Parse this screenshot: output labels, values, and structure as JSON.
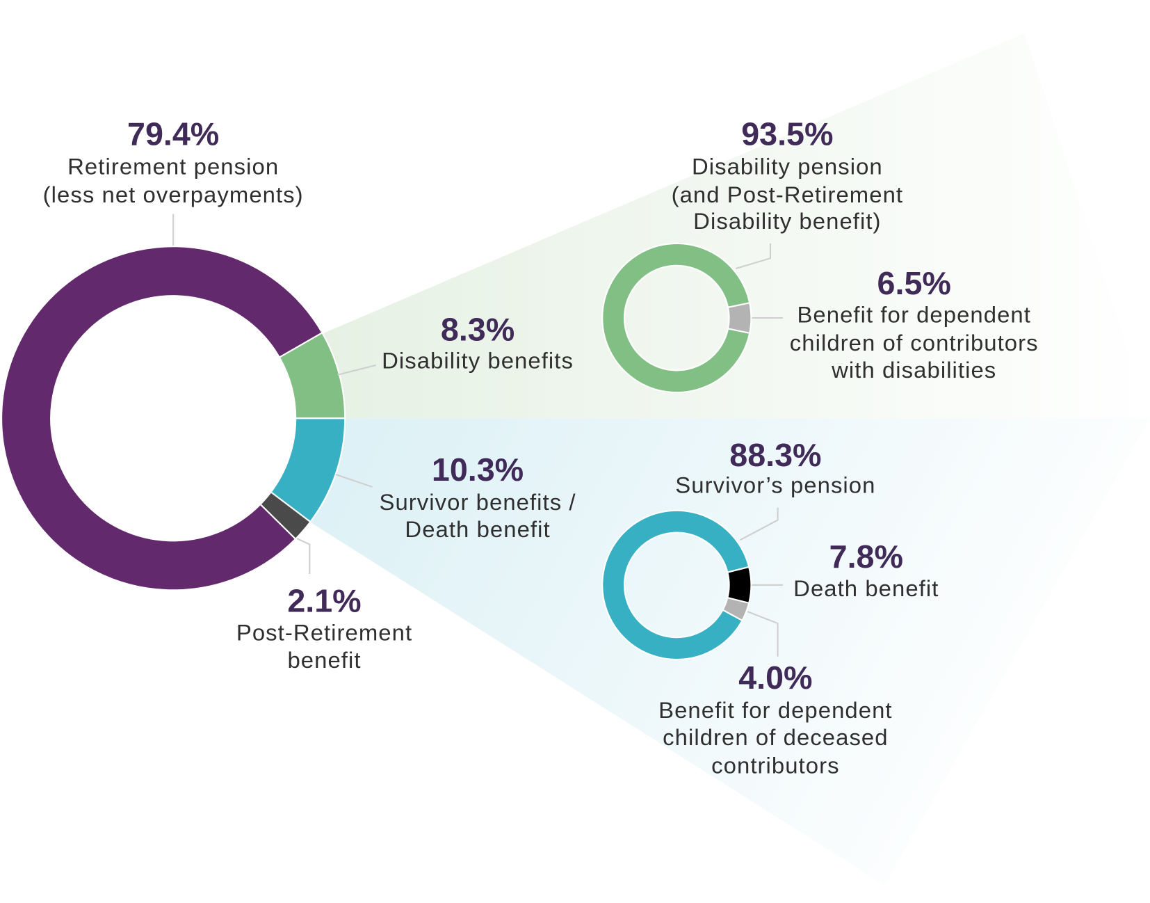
{
  "chart_data": [
    {
      "type": "pie",
      "donut": true,
      "categories": [
        [
          "Retirement pension",
          "(less net overpayments)"
        ],
        [
          "Disability benefits"
        ],
        [
          "Survivor benefits /",
          "Death benefit"
        ],
        [
          "Post-Retirement",
          "benefit"
        ]
      ],
      "values": [
        79.4,
        8.3,
        10.3,
        2.1
      ],
      "value_labels": [
        "79.4%",
        "8.3%",
        "10.3%",
        "2.1%"
      ],
      "colors": [
        "#62296c",
        "#82bf84",
        "#36b0c2",
        "#4a4a4a"
      ]
    },
    {
      "type": "pie",
      "donut": true,
      "categories": [
        [
          "Disability pension",
          "(and Post-Retirement",
          "Disability benefit)"
        ],
        [
          "Benefit for dependent",
          "children of contributors",
          "with disabilities"
        ]
      ],
      "values": [
        93.5,
        6.5
      ],
      "value_labels": [
        "93.5%",
        "6.5%"
      ],
      "colors": [
        "#82bf84",
        "#b3b3b3"
      ]
    },
    {
      "type": "pie",
      "donut": true,
      "categories": [
        [
          "Survivor’s pension"
        ],
        [
          "Death benefit"
        ],
        [
          "Benefit for dependent",
          "children of deceased",
          "contributors"
        ]
      ],
      "values": [
        88.3,
        7.8,
        4.0
      ],
      "value_labels": [
        "88.3%",
        "7.8%",
        "4.0%"
      ],
      "colors": [
        "#36b0c2",
        "#000000",
        "#b3b3b3"
      ]
    }
  ]
}
